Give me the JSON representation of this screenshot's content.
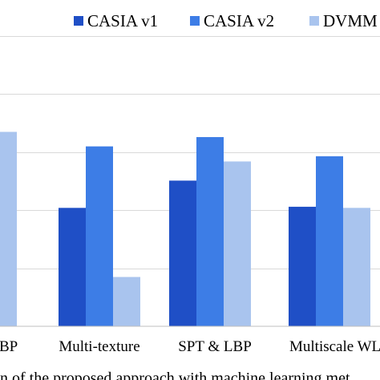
{
  "chart_data": {
    "type": "bar",
    "categories": [
      "LBP",
      "Multi-texture",
      "SPT & LBP",
      "Multiscale WL"
    ],
    "tick_labels": [
      "BP",
      "Multi-texture",
      "SPT & LBP",
      "Multiscale WL"
    ],
    "series": [
      {
        "name": "CASIA v1",
        "color": "#1f4fc6",
        "values": [
          null,
          60.4,
          65.1,
          60.6
        ]
      },
      {
        "name": "CASIA v2",
        "color": "#3d7de6",
        "values": [
          null,
          71.0,
          72.6,
          69.3
        ]
      },
      {
        "name": "DVMM",
        "color": "#a9c4ee",
        "values": [
          73.5,
          48.5,
          68.4,
          60.4
        ]
      }
    ],
    "legend_labels": [
      "CASIA v1",
      "CASIA v2",
      "DVMM"
    ],
    "ylim": [
      40,
      90
    ],
    "gridlines": [
      40,
      50,
      60,
      70,
      80,
      90
    ],
    "grid": true,
    "legend_position": "top",
    "caption": "n of the proposed approach with machine learning met"
  }
}
